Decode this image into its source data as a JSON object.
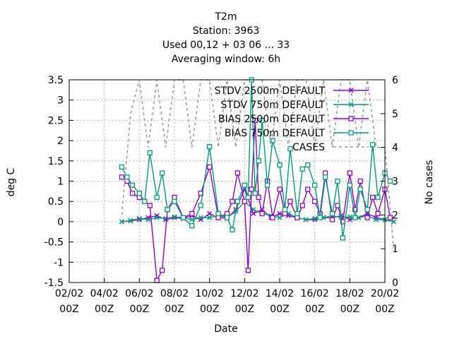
{
  "chart_data": {
    "type": "line",
    "title_lines": [
      "T2m",
      "Station:     3963",
      "Used  00,12  + 03 06 ... 33",
      "Averaging window:  6h"
    ],
    "xlabel": "Date",
    "ylabel": "deg C",
    "y2label": "No cases",
    "xlim": [
      "2025-02-02 00:00",
      "2025-02-20 00:00"
    ],
    "x_ticks": [
      {
        "date": "02/02",
        "hour": "00Z"
      },
      {
        "date": "04/02",
        "hour": "00Z"
      },
      {
        "date": "06/02",
        "hour": "00Z"
      },
      {
        "date": "08/02",
        "hour": "00Z"
      },
      {
        "date": "10/02",
        "hour": "00Z"
      },
      {
        "date": "12/02",
        "hour": "00Z"
      },
      {
        "date": "14/02",
        "hour": "00Z"
      },
      {
        "date": "16/02",
        "hour": "00Z"
      },
      {
        "date": "18/02",
        "hour": "00Z"
      },
      {
        "date": "20/02",
        "hour": "00Z"
      }
    ],
    "ylim": [
      -1.5,
      3.5
    ],
    "y_ticks": [
      "3.5",
      "3",
      "2.5",
      "2",
      "1.5",
      "1",
      "0.5",
      "0",
      "-0.5",
      "-1",
      "-1.5"
    ],
    "y2lim": [
      0,
      6
    ],
    "y2_ticks": [
      "6",
      "5",
      "4",
      "3",
      "2",
      "1",
      "0"
    ],
    "grid": true,
    "legend_position": "top-right",
    "x_days_note": "x values are days after 02/02 00Z",
    "series": [
      {
        "name": "STDV 2500m DEFAULT",
        "color": "#9400d3",
        "marker": "x",
        "axis": "y",
        "x": [
          3.0,
          3.5,
          4.0,
          4.5,
          5.0,
          5.5,
          6.0,
          6.5,
          7.0,
          7.5,
          8.0,
          8.5,
          9.0,
          9.5,
          10.0,
          10.5,
          11.0,
          11.5,
          12.0,
          12.5,
          13.0,
          13.5,
          14.0,
          14.5,
          15.0,
          15.5,
          16.0,
          16.5,
          17.0,
          17.5,
          18.0,
          18.5
        ],
        "y": [
          0.0,
          0.02,
          0.05,
          0.1,
          0.15,
          0.05,
          0.1,
          0.08,
          0.15,
          0.05,
          0.2,
          0.1,
          0.08,
          0.3,
          0.8,
          0.2,
          0.3,
          0.1,
          0.2,
          0.15,
          0.1,
          0.05,
          0.05,
          0.1,
          0.1,
          0.15,
          0.05,
          0.1,
          0.2,
          0.1,
          0.05,
          0.0
        ]
      },
      {
        "name": "STDV 750m DEFAULT",
        "color": "#009e73",
        "marker": "x",
        "axis": "y",
        "x": [
          3.0,
          3.5,
          4.0,
          4.5,
          5.0,
          5.5,
          6.0,
          6.5,
          7.0,
          7.5,
          8.0,
          8.5,
          9.0,
          9.5,
          10.0,
          10.5,
          11.0,
          11.5,
          12.0,
          12.5,
          13.0,
          13.5,
          14.0,
          14.5,
          15.0,
          15.5,
          16.0,
          16.5,
          17.0,
          17.5,
          18.0,
          18.5
        ],
        "y": [
          0.0,
          0.03,
          0.08,
          0.05,
          0.1,
          0.08,
          0.12,
          0.1,
          0.05,
          0.1,
          0.1,
          0.15,
          0.1,
          0.25,
          0.5,
          0.3,
          0.2,
          0.15,
          0.1,
          0.2,
          0.1,
          0.05,
          0.08,
          0.1,
          0.15,
          0.1,
          0.12,
          0.1,
          0.15,
          0.05,
          0.05,
          0.0
        ]
      },
      {
        "name": "BIAS 2500m DEFAULT",
        "color": "#9400d3",
        "marker": "square",
        "axis": "y",
        "x": [
          3.0,
          3.3,
          3.6,
          4.0,
          4.3,
          4.6,
          5.0,
          5.3,
          5.6,
          6.0,
          6.5,
          7.0,
          7.5,
          8.0,
          8.5,
          9.0,
          9.3,
          9.6,
          10.0,
          10.2,
          10.4,
          10.6,
          10.8,
          11.0,
          11.3,
          11.6,
          12.0,
          12.3,
          12.6,
          13.0,
          13.3,
          13.6,
          14.0,
          14.3,
          14.6,
          15.0,
          15.3,
          15.6,
          16.0,
          16.3,
          16.6,
          17.0,
          17.3,
          17.6,
          18.0,
          18.3
        ],
        "y": [
          1.1,
          1.0,
          0.7,
          0.6,
          0.5,
          0.4,
          -1.45,
          -1.2,
          0.3,
          0.6,
          0.1,
          0.2,
          0.7,
          1.35,
          0.1,
          0.2,
          0.5,
          1.2,
          0.5,
          -1.2,
          0.8,
          2.5,
          0.6,
          0.2,
          1.0,
          0.1,
          0.8,
          0.2,
          0.5,
          0.1,
          0.4,
          0.8,
          0.5,
          0.2,
          1.2,
          0.05,
          0.4,
          0.0,
          1.2,
          0.3,
          1.0,
          0.1,
          0.6,
          0.2,
          0.8,
          0.1
        ]
      },
      {
        "name": "BIAS 750m DEFAULT",
        "color": "#009e73",
        "marker": "square",
        "axis": "y",
        "x": [
          3.0,
          3.3,
          3.6,
          4.0,
          4.3,
          4.6,
          5.0,
          5.3,
          5.6,
          6.0,
          6.5,
          7.0,
          7.5,
          8.0,
          8.5,
          9.0,
          9.3,
          9.6,
          10.0,
          10.2,
          10.4,
          10.6,
          10.8,
          11.0,
          11.3,
          11.6,
          12.0,
          12.3,
          12.6,
          13.0,
          13.3,
          13.6,
          14.0,
          14.3,
          14.6,
          15.0,
          15.3,
          15.6,
          16.0,
          16.3,
          16.6,
          17.0,
          17.3,
          17.6,
          18.0,
          18.3
        ],
        "y": [
          1.35,
          1.1,
          0.9,
          0.7,
          0.5,
          1.7,
          0.6,
          1.2,
          0.3,
          0.5,
          0.1,
          -0.1,
          0.4,
          1.85,
          0.2,
          0.1,
          -0.2,
          0.5,
          0.9,
          0.6,
          3.8,
          0.7,
          1.5,
          2.5,
          0.9,
          2.0,
          1.4,
          0.3,
          1.8,
          0.2,
          1.3,
          1.4,
          0.9,
          0.1,
          1.1,
          0.2,
          1.0,
          -0.4,
          0.9,
          0.1,
          0.8,
          0.3,
          1.9,
          0.6,
          1.2,
          1.0
        ]
      },
      {
        "name": "CASES",
        "color": "#999999",
        "dash": true,
        "axis": "y2",
        "x": [
          3.0,
          3.5,
          4.0,
          4.5,
          5.0,
          5.5,
          6.0,
          6.5,
          7.0,
          7.5,
          8.0,
          8.5,
          9.0,
          9.5,
          10.0,
          10.5,
          11.0,
          11.5,
          12.0,
          12.5,
          13.0,
          13.5,
          14.0,
          14.5,
          15.0,
          15.5,
          16.0,
          16.5,
          17.0,
          17.5,
          18.0,
          18.5
        ],
        "y": [
          2.0,
          5.0,
          6.0,
          4.0,
          6.0,
          4.0,
          6.0,
          6.0,
          4.0,
          6.0,
          6.0,
          4.0,
          6.0,
          4.0,
          6.0,
          6.0,
          6.0,
          4.0,
          6.0,
          4.0,
          6.0,
          6.0,
          4.0,
          6.0,
          4.0,
          6.0,
          6.0,
          4.0,
          6.0,
          4.0,
          4.0,
          1.0
        ]
      }
    ]
  }
}
